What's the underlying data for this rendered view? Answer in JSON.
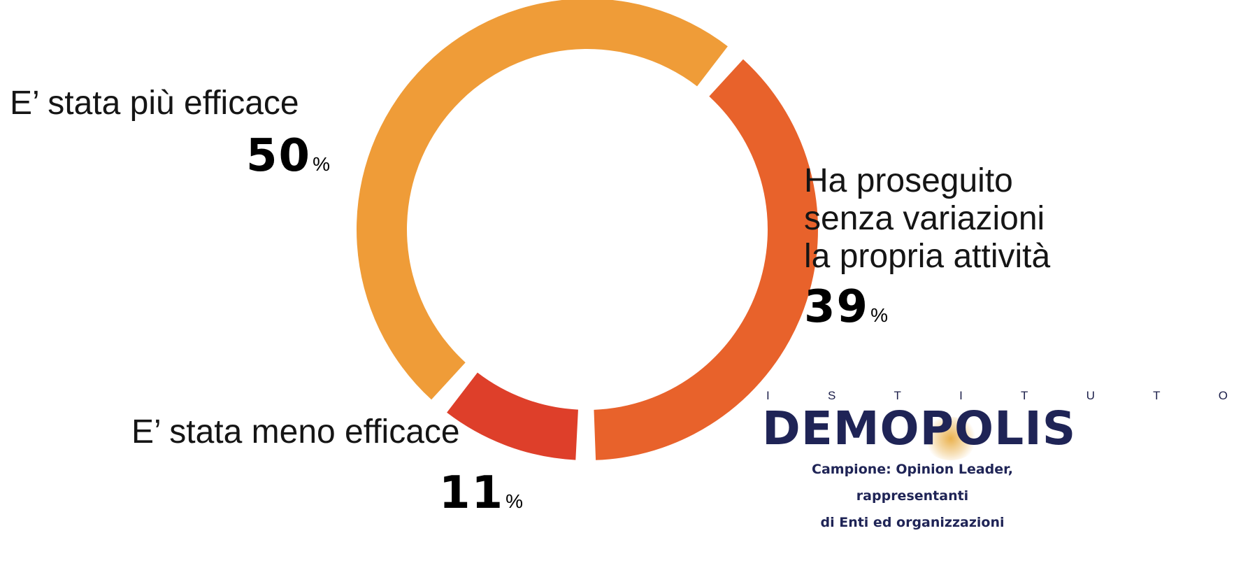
{
  "chart_data": {
    "type": "pie",
    "donut": true,
    "slices": [
      {
        "label": "Ha proseguito senza variazioni la propria attività",
        "value": 39,
        "color": "#E8622B"
      },
      {
        "label": "E’ stata meno efficace",
        "value": 11,
        "color": "#DE3F2A"
      },
      {
        "label": "E’ stata più efficace",
        "value": 50,
        "color": "#EF9C38"
      }
    ],
    "unit": "%"
  },
  "labels": {
    "more": {
      "text": "E’ stata più efficace",
      "value": "50",
      "unit": "%"
    },
    "same": {
      "line1": "Ha proseguito",
      "line2": "senza variazioni",
      "line3": "la propria attività",
      "value": "39",
      "unit": "%"
    },
    "less": {
      "text": "E’ stata meno efficace",
      "value": "11",
      "unit": "%"
    }
  },
  "logo": {
    "letters": [
      "I",
      "S",
      "T",
      "I",
      "T",
      "U",
      "T",
      "O"
    ],
    "brand": "DEMOPOLIS",
    "note_line1": "Campione: Opinion Leader, rappresentanti",
    "note_line2": "di Enti ed organizzazioni"
  }
}
